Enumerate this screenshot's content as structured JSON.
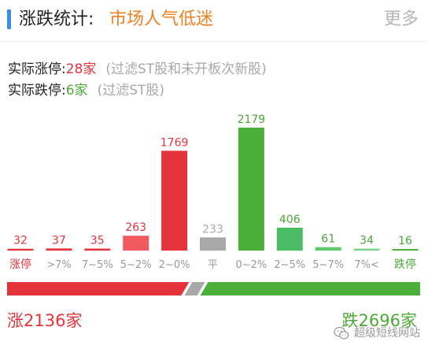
{
  "header": {
    "title": "涨跌统计:",
    "mood": "市场人气低迷",
    "more": "更多",
    "accent_color": "#3a8ee6"
  },
  "limit_up": {
    "label": "实际涨停:",
    "value": "28家",
    "note": "(过滤ST股和未开板次新股)"
  },
  "limit_down": {
    "label": "实际跌停:",
    "value": "6家",
    "note": "(过滤ST股)"
  },
  "chart_data": {
    "type": "bar",
    "categories": [
      "涨停",
      ">7%",
      "7~5%",
      "5~2%",
      "2~0%",
      "平",
      "0~2%",
      "2~5%",
      "5~7%",
      "7%<",
      "跌停"
    ],
    "values": [
      32,
      37,
      35,
      263,
      1769,
      233,
      2179,
      406,
      61,
      34,
      16
    ],
    "colors": [
      "#e5333b",
      "#e5333b",
      "#e5333b",
      "#ef5b61",
      "#e5333b",
      "#a8a8a8",
      "#4caf3a",
      "#4cbc64",
      "#5cc96d",
      "#7ad48a",
      "#4caf3a"
    ],
    "label_colors": [
      "#e5333b",
      "#e5333b",
      "#e5333b",
      "#e5333b",
      "#e5333b",
      "#a8a8a8",
      "#4da83a",
      "#4da83a",
      "#4da83a",
      "#4da83a",
      "#4da83a"
    ],
    "category_colors": [
      "#e5333b",
      "#999999",
      "#999999",
      "#999999",
      "#999999",
      "#999999",
      "#999999",
      "#999999",
      "#999999",
      "#999999",
      "#4da83a"
    ],
    "ylim": [
      0,
      2179
    ],
    "grid": false
  },
  "progress": {
    "up_count": 2136,
    "flat_count": 233,
    "down_count": 2696,
    "up_color": "#e5333b",
    "flat_color": "#a8a8a8",
    "down_color": "#4caf3a"
  },
  "totals": {
    "up": "涨2136家",
    "down": "跌2696家"
  },
  "watermark": {
    "text": "超级短线网站",
    "icon": "wechat-icon"
  }
}
